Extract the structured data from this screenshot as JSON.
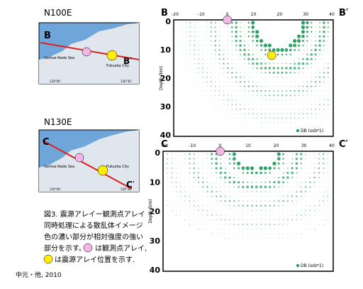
{
  "panels": [
    {
      "label": "N100E",
      "map": {
        "start": "B",
        "end": "B′",
        "sea": "Genkai-Nada Sea",
        "city": "Fukuoka City",
        "lon1": "130°00'",
        "lon2": "130°30'"
      }
    },
    {
      "label": "N130E",
      "map": {
        "start": "C",
        "end": "C′",
        "sea": "Genkai-Nada Sea",
        "city": "Fukuoka City",
        "lon1": "130°00'",
        "lon2": "130°30'"
      }
    }
  ],
  "caption": {
    "lines": [
      "図3. 震源アレイー観測点アレイ",
      "同時処理による散乱体イメージ",
      "色の濃い部分が相対強度の強い"
    ],
    "line4a": "部分を示す。",
    "line4b": "は観測点アレイ,",
    "line5": "は震源アレイ位置を示す."
  },
  "credit": "中元・他, 2010",
  "plots": [
    {
      "start": "B",
      "end": "B′",
      "xticks": [
        -20,
        -10,
        0,
        10,
        20,
        30,
        40
      ],
      "yticks": [
        0,
        10,
        20,
        30,
        40
      ],
      "ylabel": "Depth (km)",
      "legend": "DB (ssb*1)"
    },
    {
      "start": "C",
      "end": "C′",
      "xticks": [
        -20,
        -10,
        0,
        10,
        20,
        30,
        40
      ],
      "yticks": [
        0,
        10,
        20,
        30,
        40
      ],
      "ylabel": "Depth (km)",
      "legend": "DB (ssb*1)"
    }
  ]
}
